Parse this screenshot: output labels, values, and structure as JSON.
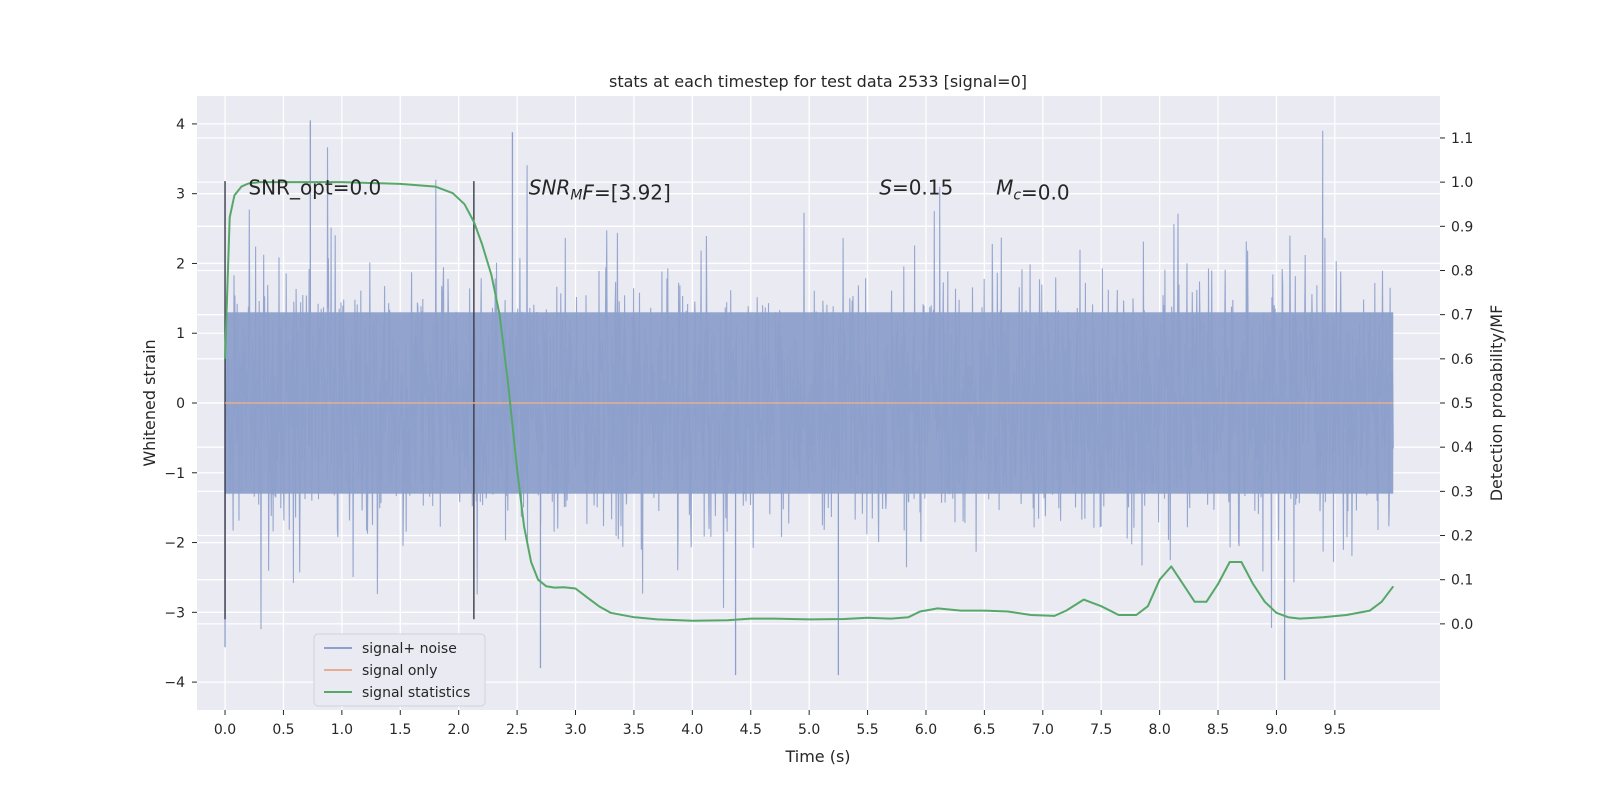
{
  "chart_data": {
    "type": "line",
    "title": "stats at each timestep for test data 2533 [signal=0]",
    "xlabel": "Time (s)",
    "ylabel_left": "Whitened strain",
    "ylabel_right": "Detection probability/MF",
    "xlim": [
      -0.24,
      10.4
    ],
    "ylim_left": [
      -4.4,
      4.4
    ],
    "ylim_right": [
      -0.195,
      1.195
    ],
    "x_ticks": [
      0.0,
      0.5,
      1.0,
      1.5,
      2.0,
      2.5,
      3.0,
      3.5,
      4.0,
      4.5,
      5.0,
      5.5,
      6.0,
      6.5,
      7.0,
      7.5,
      8.0,
      8.5,
      9.0,
      9.5
    ],
    "x_tick_labels": [
      "0.0",
      "0.5",
      "1.0",
      "1.5",
      "2.0",
      "2.5",
      "3.0",
      "3.5",
      "4.0",
      "4.5",
      "5.0",
      "5.5",
      "6.0",
      "6.5",
      "7.0",
      "7.5",
      "8.0",
      "8.5",
      "9.0",
      "9.5"
    ],
    "y_left_ticks": [
      -4,
      -3,
      -2,
      -1,
      0,
      1,
      2,
      3,
      4
    ],
    "y_left_tick_labels": [
      "−4",
      "−3",
      "−2",
      "−1",
      "0",
      "1",
      "2",
      "3",
      "4"
    ],
    "y_right_ticks": [
      0.0,
      0.1,
      0.2,
      0.3,
      0.4,
      0.5,
      0.6,
      0.7,
      0.8,
      0.9,
      1.0,
      1.1
    ],
    "y_right_tick_labels": [
      "0.0",
      "0.1",
      "0.2",
      "0.3",
      "0.4",
      "0.5",
      "0.6",
      "0.7",
      "0.8",
      "0.9",
      "1.0",
      "1.1"
    ],
    "grid": true,
    "legend_placement": "lower-left",
    "legend": [
      {
        "label": "signal+ noise",
        "color": "#8da0cb"
      },
      {
        "label": "signal only",
        "color": "#e5ae93"
      },
      {
        "label": "signal statistics",
        "color": "#55a868"
      }
    ],
    "annotations": [
      {
        "text": "SNR_opt=0.0",
        "x": 0.2,
        "y": 3.1,
        "style": "normal"
      },
      {
        "mathBase": "SNR",
        "mathSub": "M",
        "mathRest": "F",
        "text": "=[3.92]",
        "x": 2.6,
        "y": 3.1,
        "style": "math"
      },
      {
        "mathBase": "S",
        "text": "=0.15",
        "x": 5.6,
        "y": 3.1,
        "style": "math"
      },
      {
        "mathBase": "M",
        "mathSub": "c",
        "text": "=0.0",
        "x": 6.6,
        "y": 3.1,
        "style": "math"
      }
    ],
    "vlines": [
      {
        "x": 0.0,
        "ymin": -3.1,
        "ymax": 3.18
      },
      {
        "x": 2.13,
        "ymin": -3.1,
        "ymax": 3.18
      }
    ],
    "series": [
      {
        "name": "signal+ noise",
        "axis": "left",
        "kind": "noise",
        "x_range": [
          0.0,
          10.0
        ],
        "core_range": [
          -1.3,
          1.3
        ],
        "typical_peak": [
          2.0,
          2.8
        ],
        "extremes": [
          -4.0,
          4.05
        ],
        "color": "#8da0cb"
      },
      {
        "name": "signal only",
        "axis": "left",
        "color": "#e5ae93",
        "x": [
          0.0,
          10.0
        ],
        "y": [
          0.0,
          0.0
        ]
      },
      {
        "name": "signal statistics",
        "axis": "right",
        "color": "#55a868",
        "x": [
          0.0,
          0.04,
          0.08,
          0.14,
          0.2,
          0.3,
          0.5,
          1.0,
          1.5,
          1.8,
          1.95,
          2.05,
          2.13,
          2.2,
          2.28,
          2.35,
          2.42,
          2.5,
          2.56,
          2.62,
          2.68,
          2.75,
          2.82,
          2.9,
          3.0,
          3.1,
          3.2,
          3.3,
          3.5,
          3.7,
          4.0,
          4.3,
          4.5,
          4.7,
          5.0,
          5.3,
          5.5,
          5.7,
          5.85,
          5.95,
          6.1,
          6.3,
          6.5,
          6.7,
          6.9,
          7.1,
          7.2,
          7.35,
          7.5,
          7.65,
          7.8,
          7.9,
          8.0,
          8.1,
          8.2,
          8.3,
          8.4,
          8.5,
          8.6,
          8.7,
          8.8,
          8.9,
          9.0,
          9.1,
          9.2,
          9.4,
          9.6,
          9.8,
          9.9,
          10.0
        ],
        "y": [
          0.6,
          0.92,
          0.97,
          0.99,
          0.997,
          1.0,
          1.0,
          1.0,
          0.996,
          0.99,
          0.975,
          0.95,
          0.91,
          0.86,
          0.79,
          0.7,
          0.55,
          0.35,
          0.22,
          0.14,
          0.1,
          0.085,
          0.082,
          0.083,
          0.08,
          0.06,
          0.04,
          0.025,
          0.015,
          0.01,
          0.007,
          0.008,
          0.012,
          0.012,
          0.01,
          0.011,
          0.014,
          0.012,
          0.015,
          0.028,
          0.035,
          0.03,
          0.03,
          0.028,
          0.02,
          0.018,
          0.03,
          0.055,
          0.04,
          0.02,
          0.02,
          0.04,
          0.1,
          0.13,
          0.09,
          0.05,
          0.05,
          0.09,
          0.14,
          0.14,
          0.09,
          0.05,
          0.025,
          0.015,
          0.012,
          0.015,
          0.02,
          0.03,
          0.05,
          0.085
        ]
      }
    ]
  }
}
